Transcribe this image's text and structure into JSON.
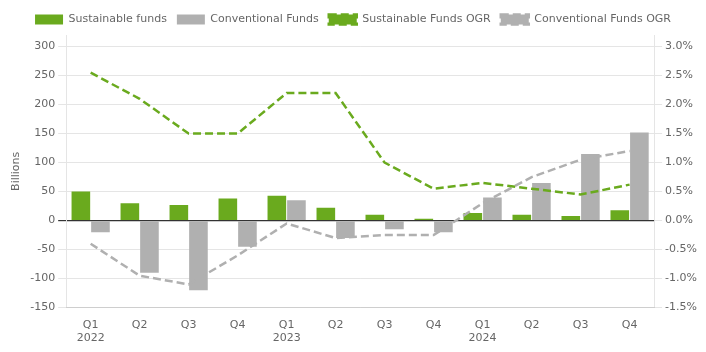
{
  "chart_data": {
    "type": "bar",
    "ylabel": "Billions",
    "categories": [
      "Q1\n2022",
      "Q2",
      "Q3",
      "Q4",
      "Q1\n2023",
      "Q2",
      "Q3",
      "Q4",
      "Q1\n2024",
      "Q2",
      "Q3",
      "Q4"
    ],
    "series": [
      {
        "name": "Sustainable funds",
        "type": "bar",
        "color": "#6aaa1e",
        "values": [
          50,
          30,
          27,
          38,
          43,
          22,
          10,
          3,
          13,
          10,
          8,
          18
        ]
      },
      {
        "name": "Conventional Funds",
        "type": "bar",
        "color": "#b0b0b0",
        "values": [
          -20,
          -90,
          -120,
          -45,
          35,
          -30,
          -15,
          -20,
          40,
          65,
          115,
          152
        ]
      },
      {
        "name": "Sustainable Funds OGR",
        "type": "line",
        "line_style": "dashed",
        "color": "#6aaa1e",
        "axis": "y2",
        "values": [
          2.55,
          2.1,
          1.5,
          1.5,
          2.2,
          2.2,
          1.0,
          0.55,
          0.65,
          0.55,
          0.45,
          0.62
        ]
      },
      {
        "name": "Conventional Funds OGR",
        "type": "line",
        "line_style": "dashed",
        "color": "#b0b0b0",
        "axis": "y2",
        "values": [
          -0.4,
          -0.95,
          -1.1,
          -0.6,
          -0.05,
          -0.3,
          -0.25,
          -0.25,
          0.3,
          0.75,
          1.05,
          1.2
        ]
      }
    ],
    "ylim": [
      -150,
      320
    ],
    "yticks": [
      -150,
      -100,
      -50,
      0,
      50,
      100,
      150,
      200,
      250,
      300
    ],
    "y2lim": [
      -1.5,
      3.2
    ],
    "y2ticks": [
      {
        "value": -1.5,
        "label": "-1.5%"
      },
      {
        "value": -1.0,
        "label": "-1.0%"
      },
      {
        "value": -0.5,
        "label": "-0.5%"
      },
      {
        "value": 0.0,
        "label": "0.0%"
      },
      {
        "value": 0.5,
        "label": "0.5%"
      },
      {
        "value": 1.0,
        "label": "1.0%"
      },
      {
        "value": 1.5,
        "label": "1.5%"
      },
      {
        "value": 2.0,
        "label": "2.0%"
      },
      {
        "value": 2.5,
        "label": "2.5%"
      },
      {
        "value": 3.0,
        "label": "3.0%"
      }
    ],
    "grid": true,
    "legend": "top"
  }
}
